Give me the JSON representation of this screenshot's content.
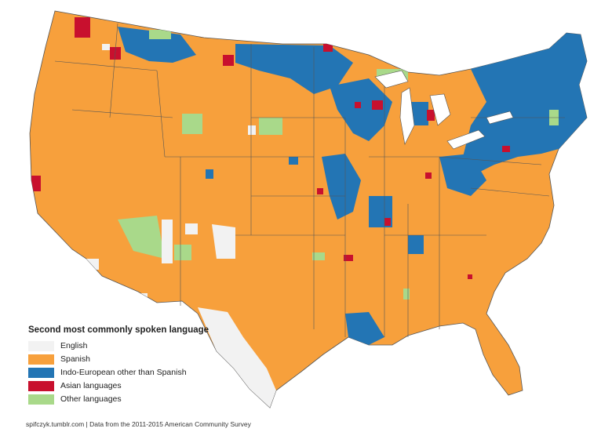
{
  "map": {
    "legend": {
      "title": "Second most commonly spoken language",
      "items": [
        {
          "label": "English",
          "color": "#f2f2f2"
        },
        {
          "label": "Spanish",
          "color": "#f7a03c"
        },
        {
          "label": "Indo-European other than Spanish",
          "color": "#2375b4"
        },
        {
          "label": "Asian languages",
          "color": "#c8102e"
        },
        {
          "label": "Other languages",
          "color": "#a9d98a"
        }
      ]
    },
    "footer": "spifczyk.tumblr.com | Data from the 2011-2015 American Community Survey"
  }
}
